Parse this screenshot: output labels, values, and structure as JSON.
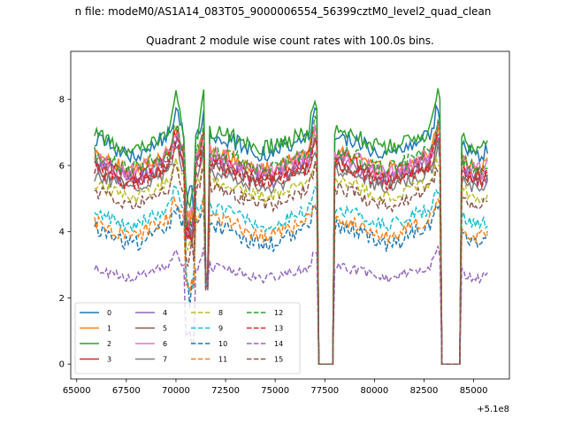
{
  "supertitle": "n file: modeM0/AS1A14_083T05_9000006554_56399cztM0_level2_quad_clean",
  "chart_data": {
    "type": "line",
    "title": "Quadrant 2 module wise count rates with 100.0s bins.",
    "xlabel": "",
    "ylabel": "",
    "x_offset_label": "+5.1e8",
    "xlim": [
      64700,
      86800
    ],
    "ylim": [
      -0.45,
      9.45
    ],
    "xticks": [
      65000,
      67500,
      70000,
      72500,
      75000,
      77500,
      80000,
      82500,
      85000
    ],
    "xtick_labels": [
      "65000",
      "67500",
      "70000",
      "72500",
      "75000",
      "77500",
      "80000",
      "82500",
      "85000"
    ],
    "yticks": [
      0,
      2,
      4,
      6,
      8
    ],
    "ytick_labels": [
      "0",
      "2",
      "4",
      "6",
      "8"
    ],
    "x_range": {
      "start": 65900,
      "stop": 85700,
      "step": 100
    },
    "gaps": [
      {
        "start": 70450,
        "end": 70950,
        "floor": null
      },
      {
        "start": 71450,
        "end": 71600,
        "floor": 2.2
      },
      {
        "start": 77150,
        "end": 77950,
        "floor": 0
      },
      {
        "start": 83400,
        "end": 84300,
        "floor": 0
      }
    ],
    "legend_position": "lower-left",
    "series": [
      {
        "name": "0",
        "color": "#1f77b4",
        "dash": "solid",
        "base": 6.9,
        "depth": 0.55,
        "peak": 0.8,
        "noise": 0.25
      },
      {
        "name": "1",
        "color": "#ff7f0e",
        "dash": "solid",
        "base": 6.4,
        "depth": 0.5,
        "peak": 0.7,
        "noise": 0.22
      },
      {
        "name": "2",
        "color": "#2ca02c",
        "dash": "solid",
        "base": 7.0,
        "depth": 0.45,
        "peak": 1.2,
        "noise": 0.25
      },
      {
        "name": "3",
        "color": "#d62728",
        "dash": "solid",
        "base": 6.2,
        "depth": 0.5,
        "peak": 0.9,
        "noise": 0.25
      },
      {
        "name": "4",
        "color": "#9467bd",
        "dash": "solid",
        "base": 6.1,
        "depth": 0.5,
        "peak": 0.8,
        "noise": 0.28
      },
      {
        "name": "5",
        "color": "#8c564b",
        "dash": "solid",
        "base": 6.0,
        "depth": 0.45,
        "peak": 0.7,
        "noise": 0.2
      },
      {
        "name": "6",
        "color": "#e377c2",
        "dash": "solid",
        "base": 6.3,
        "depth": 0.5,
        "peak": 0.8,
        "noise": 0.28
      },
      {
        "name": "7",
        "color": "#7f7f7f",
        "dash": "solid",
        "base": 5.8,
        "depth": 0.45,
        "peak": 0.7,
        "noise": 0.22
      },
      {
        "name": "8",
        "color": "#bcbd22",
        "dash": "dashed",
        "base": 5.5,
        "depth": 0.45,
        "peak": 0.7,
        "noise": 0.2
      },
      {
        "name": "9",
        "color": "#17becf",
        "dash": "dashed",
        "base": 4.7,
        "depth": 0.5,
        "peak": 0.6,
        "noise": 0.2
      },
      {
        "name": "10",
        "color": "#1f77b4",
        "dash": "dashed",
        "base": 4.2,
        "depth": 0.6,
        "peak": 0.6,
        "noise": 0.25
      },
      {
        "name": "11",
        "color": "#ff7f0e",
        "dash": "dashed",
        "base": 4.4,
        "depth": 0.55,
        "peak": 0.6,
        "noise": 0.22
      },
      {
        "name": "12",
        "color": "#2ca02c",
        "dash": "dashed",
        "base": 6.4,
        "depth": 0.5,
        "peak": 0.9,
        "noise": 0.25
      },
      {
        "name": "13",
        "color": "#d62728",
        "dash": "dashed",
        "base": 6.0,
        "depth": 0.5,
        "peak": 0.8,
        "noise": 0.25
      },
      {
        "name": "14",
        "color": "#9467bd",
        "dash": "dashed",
        "base": 2.95,
        "depth": 0.35,
        "peak": 0.5,
        "noise": 0.15
      },
      {
        "name": "15",
        "color": "#8c564b",
        "dash": "dashed",
        "base": 5.3,
        "depth": 0.5,
        "peak": 0.7,
        "noise": 0.22
      }
    ]
  }
}
